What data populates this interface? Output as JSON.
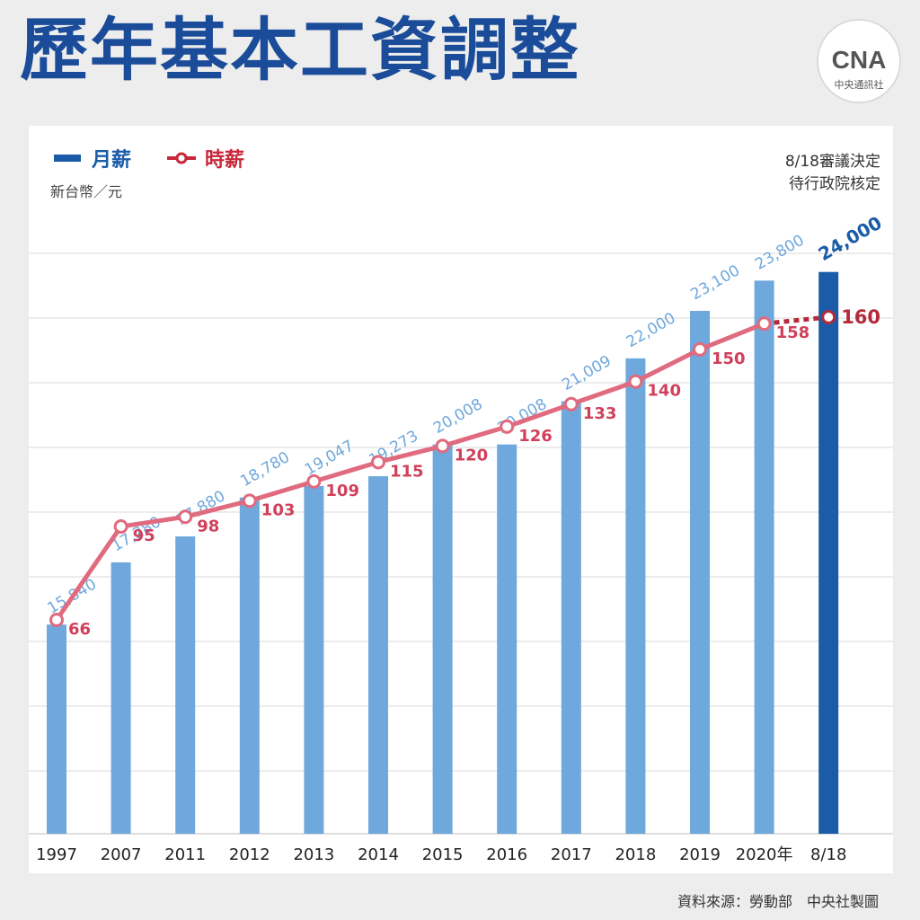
{
  "title": "歷年基本工資調整",
  "logo": {
    "mark": "CNA",
    "name": "中央通訊社"
  },
  "legend": {
    "monthly": "月薪",
    "hourly": "時薪"
  },
  "unit": "新台幣／元",
  "note": {
    "line1": "8/18審議決定",
    "line2": "待行政院核定"
  },
  "source": "資料來源：勞動部　中央社製圖",
  "colors": {
    "title": "#1a4c99",
    "bar": "#6fa8dc",
    "bar_highlight": "#1a5ca8",
    "line": "#e06a7e",
    "line_highlight": "#b52a3a",
    "bar_label": "#6fa8dc",
    "line_label": "#d0405a"
  },
  "chart_data": {
    "type": "bar",
    "categories": [
      "1997",
      "2007",
      "2011",
      "2012",
      "2013",
      "2014",
      "2015",
      "2016",
      "2017",
      "2018",
      "2019",
      "2020年",
      "8/18"
    ],
    "series": [
      {
        "name": "月薪",
        "type": "bar",
        "values": [
          15840,
          17280,
          17880,
          18780,
          19047,
          19273,
          20008,
          20008,
          21009,
          22000,
          23100,
          23800,
          24000
        ],
        "labels": [
          "15,840",
          "17,280",
          "17,880",
          "18,780",
          "19,047",
          "19,273",
          "20,008",
          "20,008",
          "21,009",
          "22,000",
          "23,100",
          "23,800",
          "24,000"
        ]
      },
      {
        "name": "時薪",
        "type": "line",
        "values": [
          66,
          95,
          98,
          103,
          109,
          115,
          120,
          126,
          133,
          140,
          150,
          158,
          160
        ],
        "labels": [
          "66",
          "95",
          "98",
          "103",
          "109",
          "115",
          "120",
          "126",
          "133",
          "140",
          "150",
          "158",
          "160"
        ]
      }
    ],
    "highlight_index": 12,
    "grid": true
  }
}
